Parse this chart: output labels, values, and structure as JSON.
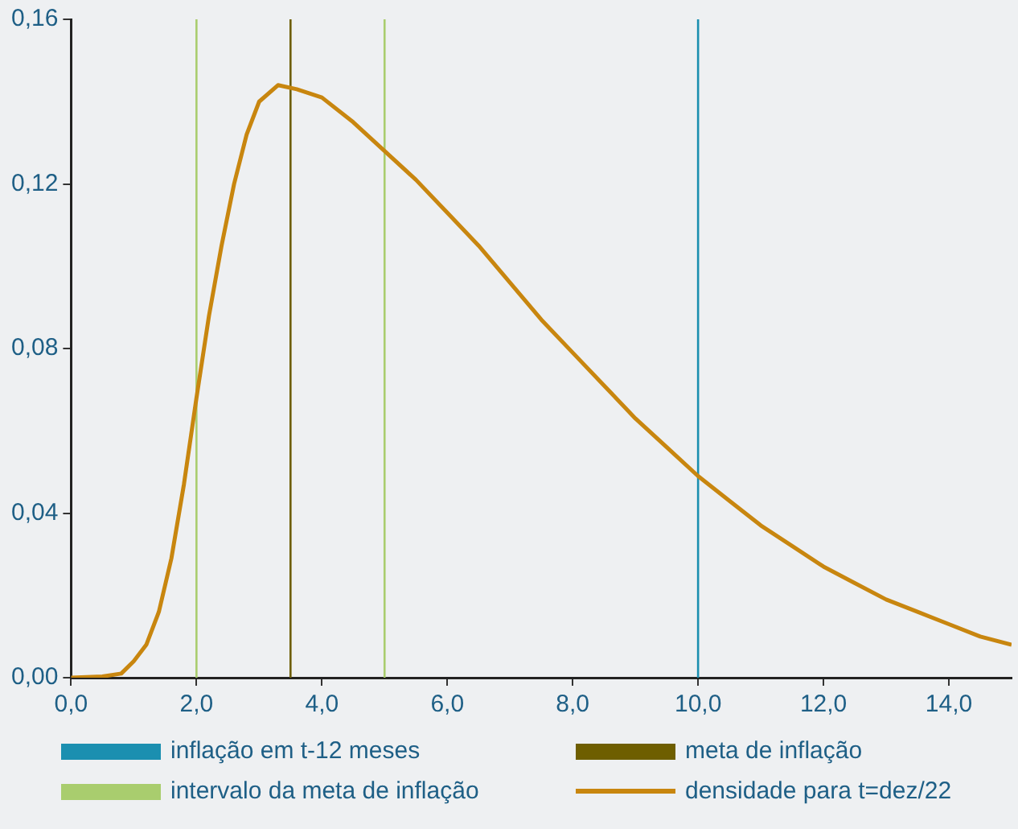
{
  "chart_data": {
    "type": "line",
    "x": [
      0,
      0.5,
      0.8,
      1,
      1.2,
      1.4,
      1.6,
      1.8,
      2,
      2.2,
      2.4,
      2.6,
      2.8,
      3,
      3.3,
      3.6,
      4,
      4.5,
      5,
      5.5,
      6,
      6.5,
      7,
      7.5,
      8,
      8.5,
      9,
      9.5,
      10,
      10.5,
      11,
      11.5,
      12,
      12.5,
      13,
      13.5,
      14,
      14.5,
      15
    ],
    "series": [
      {
        "name": "densidade para t=dez/22",
        "color": "#c8860f",
        "values": [
          0,
          0.0003,
          0.001,
          0.004,
          0.008,
          0.016,
          0.029,
          0.047,
          0.068,
          0.088,
          0.105,
          0.12,
          0.132,
          0.14,
          0.144,
          0.143,
          0.141,
          0.135,
          0.128,
          0.121,
          0.113,
          0.105,
          0.096,
          0.087,
          0.079,
          0.071,
          0.063,
          0.056,
          0.049,
          0.043,
          0.037,
          0.032,
          0.027,
          0.023,
          0.019,
          0.016,
          0.013,
          0.01,
          0.008
        ]
      }
    ],
    "xlim": [
      0,
      15
    ],
    "xticks": [
      {
        "value": 0,
        "label": "0,0"
      },
      {
        "value": 2,
        "label": "2,0"
      },
      {
        "value": 4,
        "label": "4,0"
      },
      {
        "value": 6,
        "label": "6,0"
      },
      {
        "value": 8,
        "label": "8,0"
      },
      {
        "value": 10,
        "label": "10,0"
      },
      {
        "value": 12,
        "label": "12,0"
      },
      {
        "value": 14,
        "label": "14,0"
      }
    ],
    "ylim": [
      0,
      0.16
    ],
    "yticks": [
      {
        "value": 0,
        "label": "0,00"
      },
      {
        "value": 0.04,
        "label": "0,04"
      },
      {
        "value": 0.08,
        "label": "0,08"
      },
      {
        "value": 0.12,
        "label": "0,12"
      },
      {
        "value": 0.16,
        "label": "0,16"
      }
    ],
    "ref_lines": [
      {
        "axis": "x",
        "value": 10,
        "label": "inflação em t-12 meses",
        "color": "#1b8fb0"
      },
      {
        "axis": "x",
        "value": 3.5,
        "label": "meta de inflação",
        "color": "#6e5e00"
      },
      {
        "axis": "x",
        "value": 2,
        "label": "intervalo da meta de inflação",
        "color": "#a9cd6e"
      },
      {
        "axis": "x",
        "value": 5,
        "color": "#a9cd6e"
      }
    ],
    "grid": false,
    "legend": "bottom",
    "marker": "none",
    "line_style": "solid"
  }
}
